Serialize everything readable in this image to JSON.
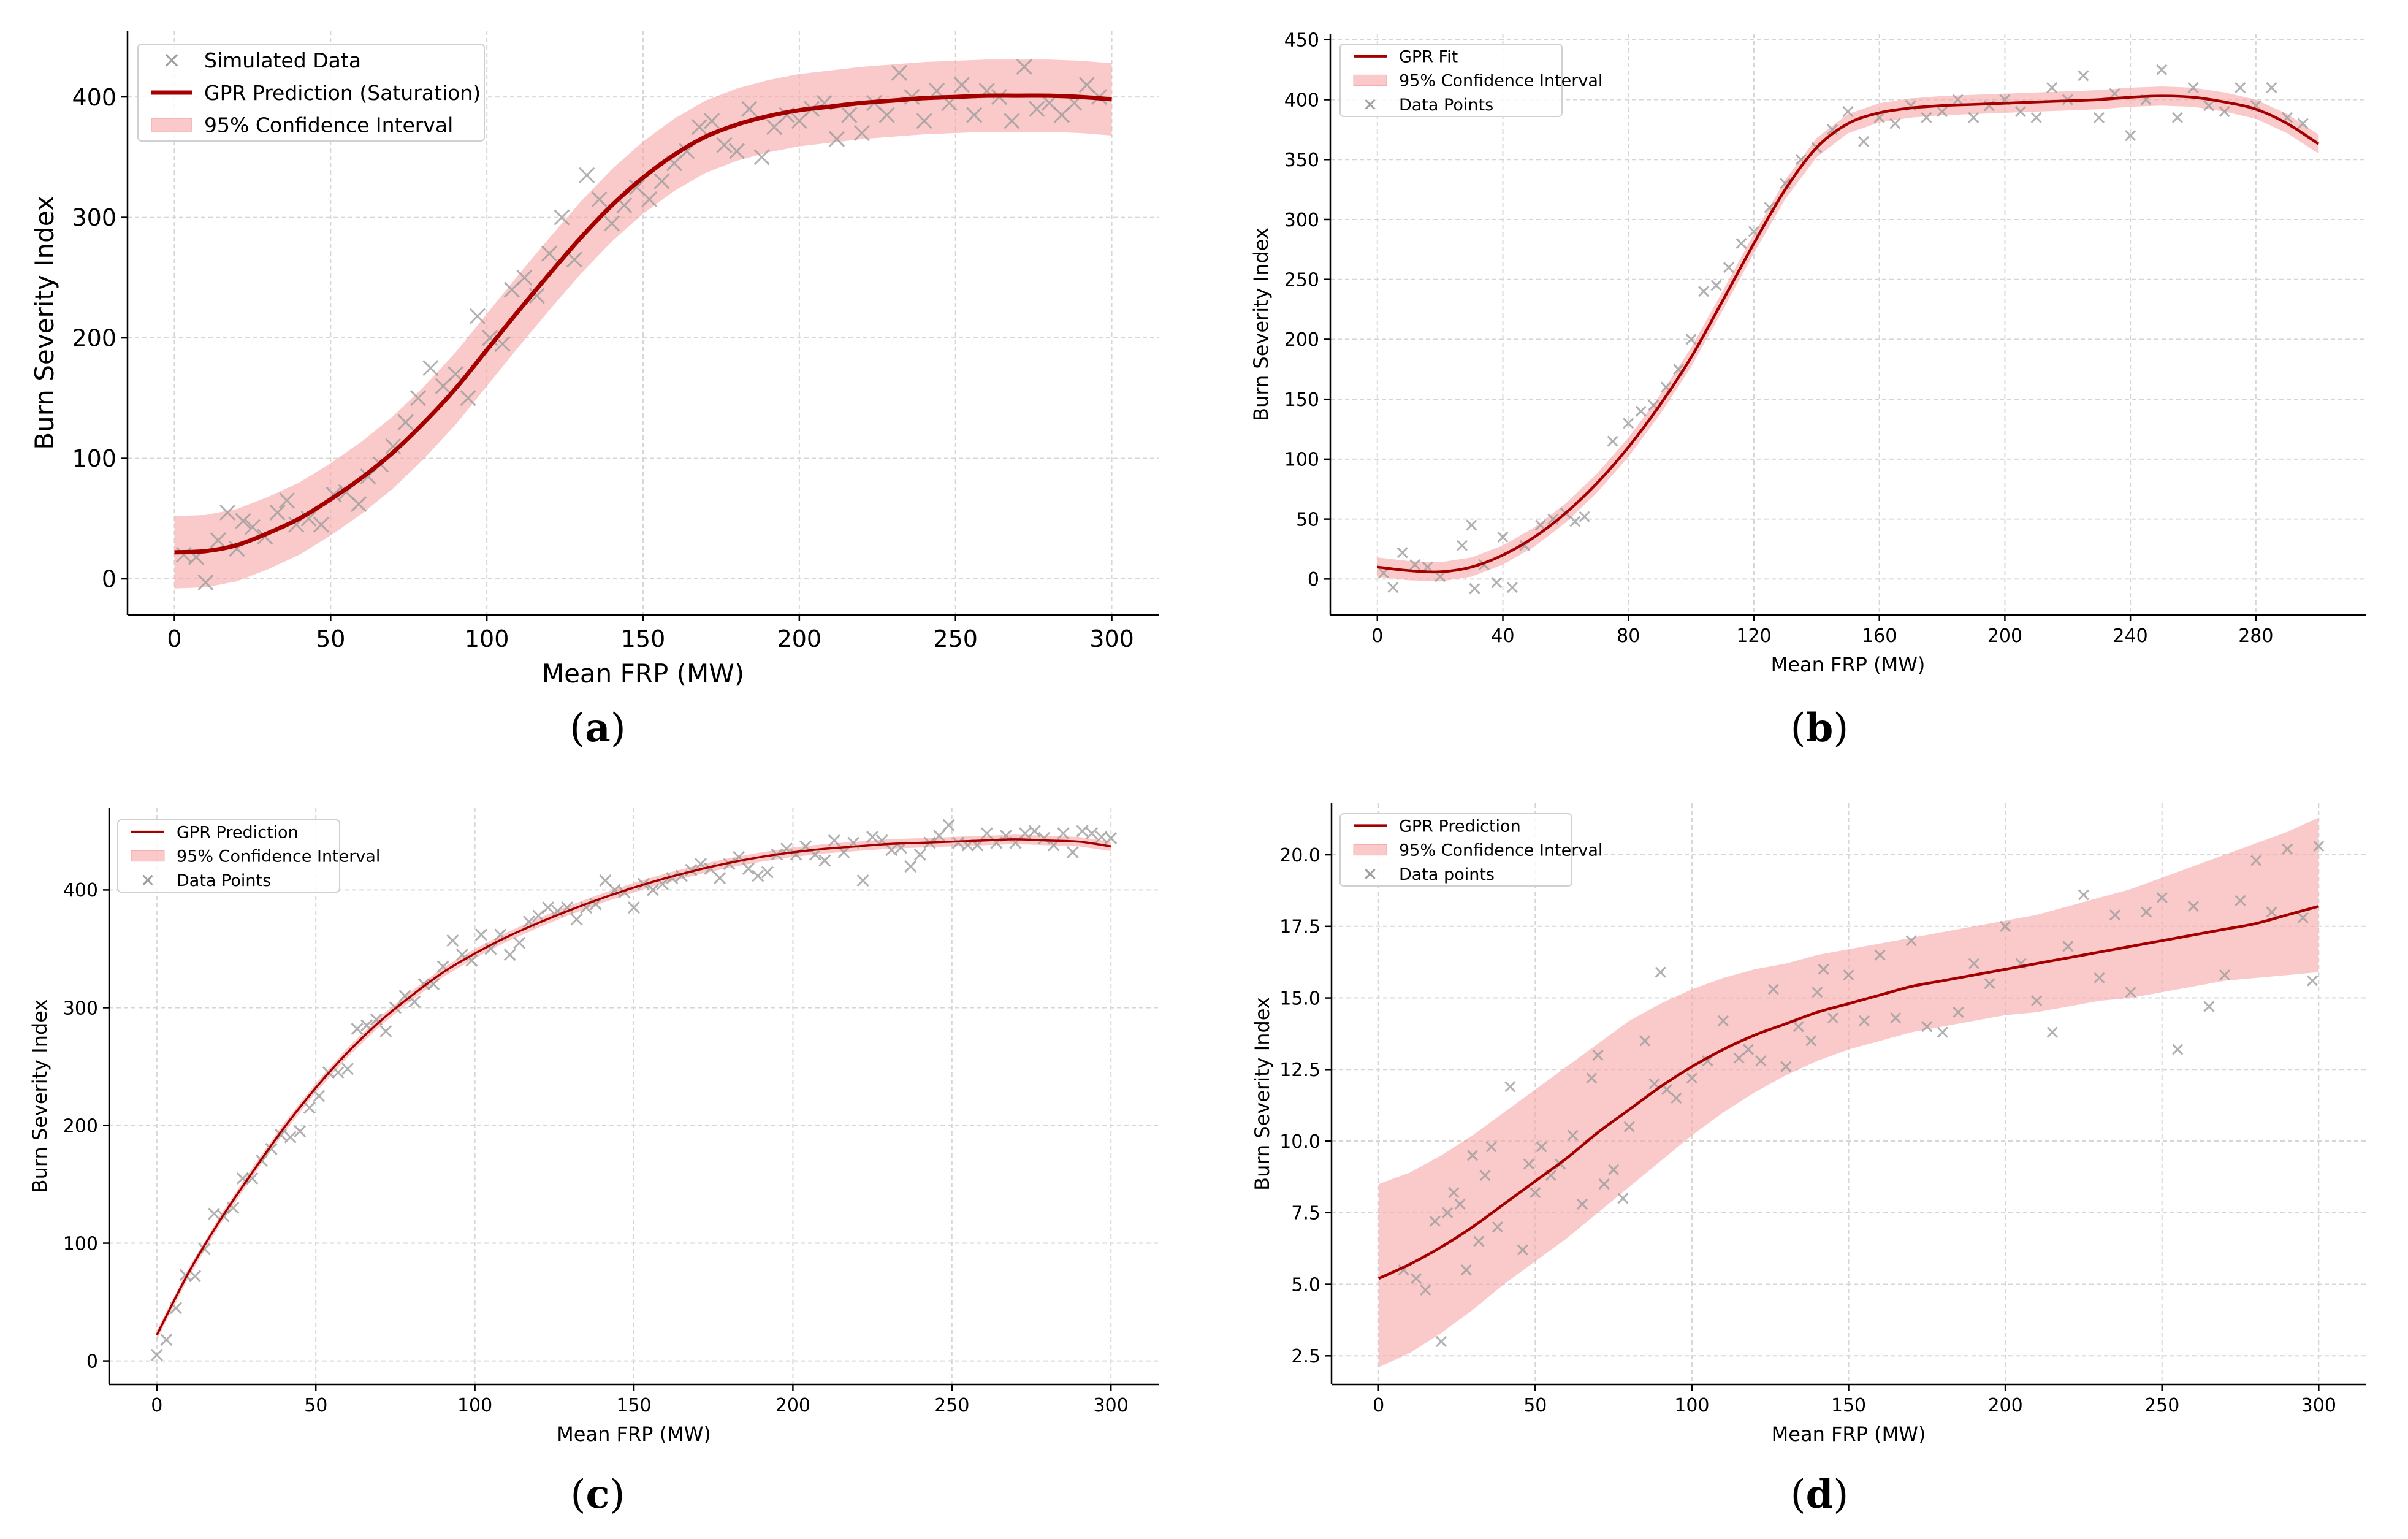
{
  "chart_data": [
    {
      "panel": "a",
      "type": "line",
      "title": "",
      "xlabel": "Mean FRP (MW)",
      "ylabel": "Burn Severity Index",
      "xlim": [
        -15,
        315
      ],
      "ylim": [
        -30,
        455
      ],
      "xticks": [
        0,
        50,
        100,
        150,
        200,
        250,
        300
      ],
      "yticks": [
        0,
        100,
        200,
        300,
        400
      ],
      "ytick_labels": [
        "0",
        "100",
        "200",
        "300",
        "400"
      ],
      "grid": true,
      "legend_position": "top-left",
      "legend": [
        "Simulated Data",
        "GPR Prediction (Saturation)",
        "95% Confidence Interval"
      ],
      "curve": {
        "x": [
          0,
          10,
          20,
          30,
          40,
          50,
          60,
          70,
          80,
          90,
          100,
          110,
          120,
          130,
          140,
          150,
          160,
          170,
          180,
          190,
          200,
          210,
          220,
          230,
          240,
          250,
          260,
          270,
          280,
          290,
          300
        ],
        "y": [
          22,
          23,
          28,
          38,
          50,
          66,
          84,
          105,
          130,
          158,
          190,
          222,
          253,
          283,
          310,
          333,
          352,
          367,
          377,
          384,
          389,
          392,
          395,
          397,
          399,
          400,
          401,
          401,
          401,
          400,
          398
        ]
      },
      "band_halfwidth": 30,
      "points": {
        "x": [
          3,
          7,
          10,
          14,
          17,
          20,
          22,
          25,
          29,
          33,
          36,
          39,
          43,
          47,
          51,
          55,
          59,
          62,
          66,
          70,
          74,
          78,
          82,
          86,
          90,
          94,
          97,
          101,
          105,
          108,
          112,
          116,
          120,
          124,
          128,
          132,
          136,
          140,
          144,
          148,
          152,
          156,
          160,
          164,
          168,
          172,
          176,
          180,
          184,
          188,
          192,
          196,
          200,
          204,
          208,
          212,
          216,
          220,
          224,
          228,
          232,
          236,
          240,
          244,
          248,
          252,
          256,
          260,
          264,
          268,
          272,
          276,
          280,
          284,
          288,
          292,
          296
        ],
        "y": [
          20,
          18,
          -3,
          32,
          55,
          25,
          48,
          43,
          35,
          55,
          65,
          45,
          50,
          45,
          70,
          72,
          62,
          85,
          95,
          110,
          130,
          150,
          175,
          160,
          170,
          150,
          218,
          200,
          195,
          240,
          250,
          235,
          270,
          300,
          265,
          335,
          315,
          295,
          310,
          325,
          315,
          330,
          345,
          355,
          375,
          380,
          360,
          355,
          390,
          350,
          375,
          385,
          380,
          390,
          395,
          365,
          385,
          370,
          395,
          385,
          420,
          400,
          380,
          405,
          395,
          410,
          385,
          405,
          400,
          380,
          425,
          390,
          395,
          385,
          395,
          410,
          400
        ]
      }
    },
    {
      "panel": "b",
      "type": "line",
      "title": "",
      "xlabel": "Mean FRP (MW)",
      "ylabel": "Burn Severity Index",
      "xlim": [
        -15,
        315
      ],
      "ylim": [
        -30,
        455
      ],
      "xticks": [
        0,
        40,
        80,
        120,
        160,
        200,
        240,
        280
      ],
      "yticks": [
        0,
        50,
        100,
        150,
        200,
        250,
        300,
        350,
        400,
        450
      ],
      "ytick_labels": [
        "0",
        "50",
        "100",
        "150",
        "200",
        "250",
        "300",
        "350",
        "400",
        "450"
      ],
      "grid": true,
      "legend_position": "top-left",
      "legend": [
        "GPR Fit",
        "95% Confidence Interval",
        "Data Points"
      ],
      "curve": {
        "x": [
          0,
          10,
          20,
          30,
          40,
          50,
          60,
          70,
          80,
          90,
          100,
          110,
          120,
          130,
          140,
          150,
          160,
          170,
          180,
          190,
          200,
          210,
          220,
          230,
          240,
          250,
          260,
          270,
          280,
          290,
          300
        ],
        "y": [
          10,
          7,
          6,
          10,
          20,
          35,
          55,
          80,
          110,
          145,
          185,
          232,
          280,
          325,
          360,
          380,
          389,
          393,
          395,
          396,
          397,
          398,
          399,
          400,
          402,
          403,
          402,
          398,
          392,
          380,
          363
        ]
      },
      "band_halfwidth": 8,
      "points": {
        "x": [
          2,
          5,
          8,
          12,
          16,
          20,
          27,
          30,
          31,
          34,
          38,
          40,
          43,
          47,
          52,
          56,
          60,
          63,
          66,
          75,
          80,
          84,
          88,
          92,
          96,
          100,
          104,
          108,
          112,
          116,
          120,
          125,
          130,
          135,
          140,
          145,
          150,
          155,
          160,
          165,
          170,
          175,
          180,
          185,
          190,
          195,
          200,
          205,
          210,
          215,
          220,
          225,
          230,
          235,
          240,
          245,
          250,
          255,
          260,
          265,
          270,
          275,
          280,
          285,
          290,
          295
        ],
        "y": [
          5,
          -7,
          22,
          12,
          10,
          2,
          28,
          45,
          -8,
          12,
          -3,
          35,
          -7,
          28,
          45,
          50,
          55,
          48,
          52,
          115,
          130,
          140,
          145,
          160,
          175,
          200,
          240,
          245,
          260,
          280,
          290,
          310,
          330,
          350,
          360,
          375,
          390,
          365,
          385,
          380,
          395,
          385,
          390,
          400,
          385,
          395,
          400,
          390,
          385,
          410,
          400,
          420,
          385,
          405,
          370,
          400,
          425,
          385,
          410,
          395,
          390,
          410,
          395,
          410,
          385,
          380
        ]
      }
    },
    {
      "panel": "c",
      "type": "line",
      "title": "",
      "xlabel": "Mean FRP (MW)",
      "ylabel": "Burn Severity Index",
      "xlim": [
        -15,
        315
      ],
      "ylim": [
        -20,
        470
      ],
      "xticks": [
        0,
        50,
        100,
        150,
        200,
        250,
        300
      ],
      "yticks": [
        0,
        100,
        200,
        300,
        400
      ],
      "ytick_labels": [
        "0",
        "100",
        "200",
        "300",
        "400"
      ],
      "grid": true,
      "legend_position": "top-left",
      "legend": [
        "GPR Prediction",
        "95% Confidence Interval",
        "Data Points"
      ],
      "curve": {
        "x": [
          0,
          10,
          20,
          30,
          40,
          50,
          60,
          70,
          80,
          90,
          100,
          110,
          120,
          130,
          140,
          150,
          160,
          170,
          180,
          190,
          200,
          210,
          220,
          230,
          240,
          250,
          260,
          270,
          280,
          290,
          300
        ],
        "y": [
          22,
          75,
          120,
          160,
          198,
          232,
          262,
          288,
          310,
          330,
          346,
          360,
          372,
          383,
          393,
          402,
          410,
          417,
          423,
          428,
          432,
          435,
          437,
          439,
          440,
          441,
          442,
          443,
          442,
          441,
          437
        ]
      },
      "band_halfwidth": 4,
      "points": {
        "x": [
          0,
          3,
          6,
          9,
          12,
          15,
          18,
          21,
          24,
          27,
          30,
          33,
          36,
          39,
          42,
          45,
          48,
          51,
          54,
          57,
          60,
          63,
          66,
          69,
          72,
          75,
          78,
          81,
          84,
          87,
          90,
          93,
          96,
          99,
          102,
          105,
          108,
          111,
          114,
          117,
          120,
          123,
          126,
          129,
          132,
          135,
          138,
          141,
          144,
          147,
          150,
          153,
          156,
          159,
          162,
          165,
          168,
          171,
          174,
          177,
          180,
          183,
          186,
          189,
          192,
          195,
          198,
          201,
          204,
          207,
          210,
          213,
          216,
          219,
          222,
          225,
          228,
          231,
          234,
          237,
          240,
          243,
          246,
          249,
          252,
          255,
          258,
          261,
          264,
          267,
          270,
          273,
          276,
          279,
          282,
          285,
          288,
          291,
          294,
          297,
          300
        ],
        "y": [
          5,
          18,
          45,
          73,
          72,
          95,
          125,
          123,
          130,
          155,
          155,
          170,
          180,
          192,
          190,
          195,
          215,
          225,
          245,
          245,
          248,
          282,
          285,
          290,
          280,
          300,
          310,
          305,
          320,
          320,
          335,
          357,
          345,
          340,
          362,
          350,
          362,
          345,
          355,
          373,
          378,
          385,
          382,
          385,
          375,
          385,
          388,
          408,
          400,
          398,
          385,
          405,
          400,
          405,
          410,
          412,
          417,
          422,
          418,
          410,
          422,
          428,
          418,
          412,
          415,
          430,
          435,
          430,
          437,
          430,
          425,
          442,
          432,
          440,
          408,
          445,
          442,
          434,
          436,
          420,
          430,
          440,
          446,
          455,
          440,
          438,
          438,
          448,
          440,
          446,
          440,
          448,
          450,
          444,
          438,
          448,
          432,
          450,
          448,
          445,
          444
        ]
      }
    },
    {
      "panel": "d",
      "type": "line",
      "title": "",
      "xlabel": "Mean FRP (MW)",
      "ylabel": "Burn Severity Index",
      "xlim": [
        -15,
        315
      ],
      "ylim": [
        1.5,
        21.8
      ],
      "xticks": [
        0,
        50,
        100,
        150,
        200,
        250,
        300
      ],
      "yticks": [
        2.5,
        5.0,
        7.5,
        10.0,
        12.5,
        15.0,
        17.5,
        20.0
      ],
      "ytick_labels": [
        "2.5",
        "5.0",
        "7.5",
        "10.0",
        "12.5",
        "15.0",
        "17.5",
        "20.0"
      ],
      "grid": true,
      "legend_position": "top-left",
      "legend": [
        "GPR Prediction",
        "95% Confidence Interval",
        "Data points"
      ],
      "curve": {
        "x": [
          0,
          10,
          20,
          30,
          40,
          50,
          60,
          70,
          80,
          90,
          100,
          110,
          120,
          130,
          140,
          150,
          160,
          170,
          180,
          190,
          200,
          210,
          220,
          230,
          240,
          250,
          260,
          270,
          280,
          290,
          300
        ],
        "y": [
          5.2,
          5.7,
          6.3,
          7.0,
          7.8,
          8.6,
          9.4,
          10.3,
          11.1,
          11.9,
          12.6,
          13.2,
          13.7,
          14.1,
          14.5,
          14.8,
          15.1,
          15.4,
          15.6,
          15.8,
          16.0,
          16.2,
          16.4,
          16.6,
          16.8,
          17.0,
          17.2,
          17.4,
          17.6,
          17.9,
          18.2
        ]
      },
      "band_lower": [
        2.1,
        2.6,
        3.3,
        4.1,
        5.0,
        5.8,
        6.6,
        7.5,
        8.4,
        9.3,
        10.2,
        11.0,
        11.7,
        12.3,
        12.8,
        13.2,
        13.5,
        13.8,
        14.0,
        14.2,
        14.4,
        14.5,
        14.7,
        14.9,
        15.0,
        15.2,
        15.4,
        15.6,
        15.7,
        15.8,
        15.9
      ],
      "band_upper": [
        8.5,
        8.9,
        9.5,
        10.2,
        11.0,
        11.8,
        12.6,
        13.4,
        14.2,
        14.8,
        15.3,
        15.7,
        16.0,
        16.2,
        16.5,
        16.7,
        16.9,
        17.1,
        17.3,
        17.5,
        17.7,
        17.9,
        18.2,
        18.5,
        18.8,
        19.2,
        19.6,
        20.0,
        20.4,
        20.8,
        21.3
      ],
      "points": {
        "x": [
          8,
          12,
          15,
          18,
          20,
          22,
          24,
          26,
          28,
          30,
          32,
          34,
          36,
          38,
          42,
          46,
          48,
          50,
          52,
          55,
          58,
          62,
          65,
          68,
          70,
          72,
          75,
          78,
          80,
          85,
          88,
          90,
          92,
          95,
          100,
          105,
          110,
          115,
          118,
          122,
          126,
          130,
          134,
          138,
          140,
          142,
          145,
          150,
          155,
          160,
          165,
          170,
          175,
          180,
          185,
          190,
          195,
          200,
          205,
          210,
          215,
          220,
          225,
          230,
          235,
          240,
          245,
          250,
          255,
          260,
          265,
          270,
          275,
          280,
          285,
          290,
          295,
          298,
          300
        ],
        "y": [
          5.5,
          5.2,
          4.8,
          7.2,
          3.0,
          7.5,
          8.2,
          7.8,
          5.5,
          9.5,
          6.5,
          8.8,
          9.8,
          7.0,
          11.9,
          6.2,
          9.2,
          8.2,
          9.8,
          8.8,
          9.2,
          10.2,
          7.8,
          12.2,
          13.0,
          8.5,
          9.0,
          8.0,
          10.5,
          13.5,
          12.0,
          15.9,
          11.8,
          11.5,
          12.2,
          12.8,
          14.2,
          12.9,
          13.2,
          12.8,
          15.3,
          12.6,
          14.0,
          13.5,
          15.2,
          16.0,
          14.3,
          15.8,
          14.2,
          16.5,
          14.3,
          17.0,
          14.0,
          13.8,
          14.5,
          16.2,
          15.5,
          17.5,
          16.2,
          14.9,
          13.8,
          16.8,
          18.6,
          15.7,
          17.9,
          15.2,
          18.0,
          18.5,
          13.2,
          18.2,
          14.7,
          15.8,
          18.4,
          19.8,
          18.0,
          20.2,
          17.8,
          15.6,
          20.3
        ]
      }
    }
  ],
  "captions": {
    "a": "a",
    "b": "b",
    "c": "c",
    "d": "d"
  },
  "colors": {
    "line": "#a50000",
    "band": "#f7a8a8",
    "point": "#9e9e9e",
    "grid": "#d6d6d6",
    "axis": "#000000"
  }
}
